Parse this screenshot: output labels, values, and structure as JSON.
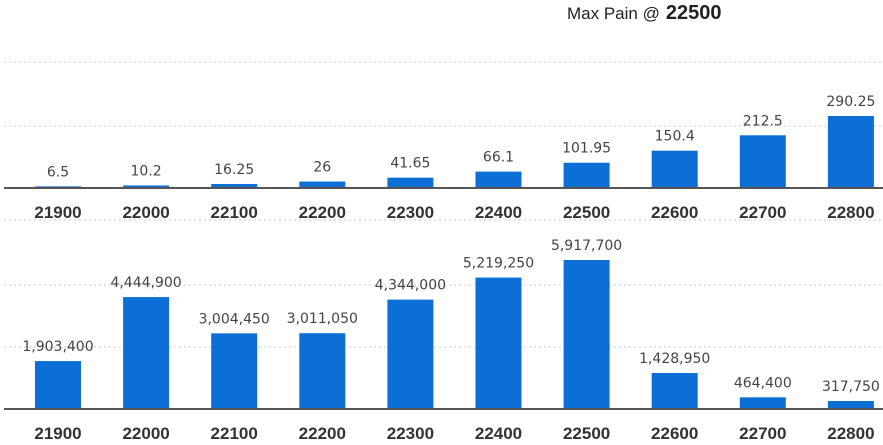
{
  "header": {
    "label": "Max Pain @",
    "value": "22500"
  },
  "chart_data": [
    {
      "type": "bar",
      "categories": [
        "21900",
        "22000",
        "22100",
        "22200",
        "22300",
        "22400",
        "22500",
        "22600",
        "22700",
        "22800"
      ],
      "values": [
        6.5,
        10.2,
        16.25,
        26,
        41.65,
        66.1,
        101.95,
        150.4,
        212.5,
        290.25
      ],
      "value_labels": [
        "6.5",
        "10.2",
        "16.25",
        "26",
        "41.65",
        "66.1",
        "101.95",
        "150.4",
        "212.5",
        "290.25"
      ],
      "ylim": [
        0,
        290.25
      ],
      "grid": true,
      "colors": {
        "bar": "#0b6fd6",
        "axis": "#555555",
        "grid": "#c8c8c8"
      }
    },
    {
      "type": "bar",
      "categories": [
        "21900",
        "22000",
        "22100",
        "22200",
        "22300",
        "22400",
        "22500",
        "22600",
        "22700",
        "22800"
      ],
      "values": [
        1903400,
        4444900,
        3004450,
        3011050,
        4344000,
        5219250,
        5917700,
        1428950,
        464400,
        317750
      ],
      "value_labels": [
        "1,903,400",
        "4,444,900",
        "3,004,450",
        "3,011,050",
        "4,344,000",
        "5,219,250",
        "5,917,700",
        "1,428,950",
        "464,400",
        "317,750"
      ],
      "ylim": [
        0,
        5917700
      ],
      "grid": true,
      "colors": {
        "bar": "#0b6fd6",
        "axis": "#555555",
        "grid": "#c8c8c8"
      }
    }
  ]
}
